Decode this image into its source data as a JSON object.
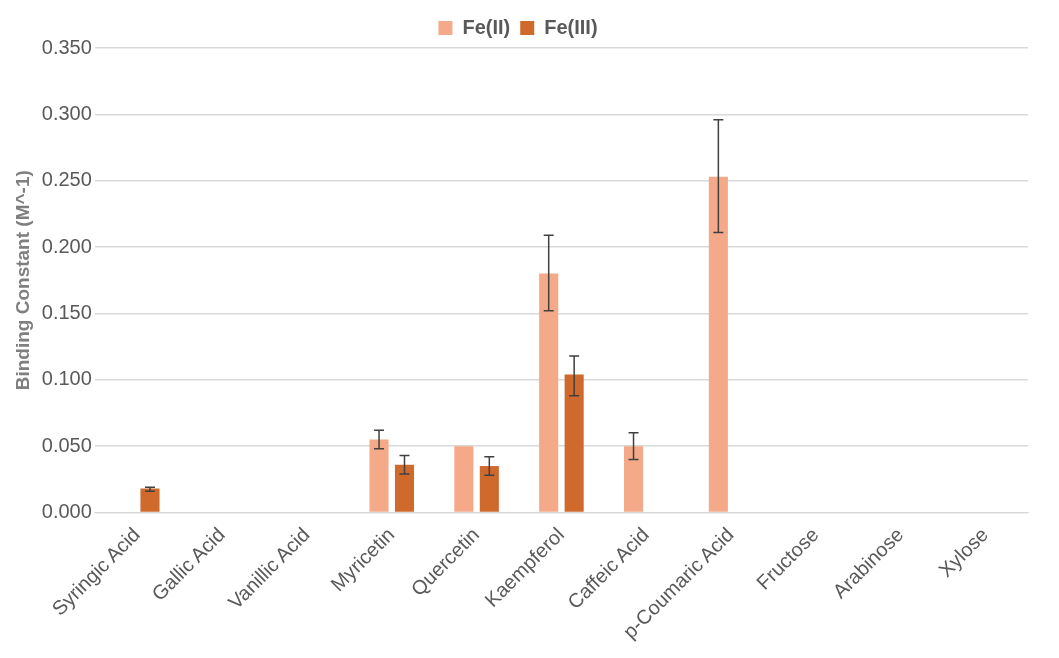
{
  "chart_data": {
    "type": "bar",
    "ylabel": "Binding Constant (M^-1)",
    "categories": [
      "Syringic Acid",
      "Gallic Acid",
      "Vanillic Acid",
      "Myricetin",
      "Quercetin",
      "Kaempferol",
      "Caffeic Acid",
      "p-Coumaric Acid",
      "Fructose",
      "Arabinose",
      "Xylose"
    ],
    "series": [
      {
        "name": "Fe(II)",
        "color": "#f4aa88",
        "values": [
          null,
          null,
          null,
          0.055,
          0.05,
          0.18,
          0.05,
          0.253,
          null,
          null,
          null
        ],
        "errors": [
          null,
          null,
          null,
          [
            0.048,
            0.062
          ],
          null,
          [
            0.152,
            0.209
          ],
          [
            0.04,
            0.06
          ],
          [
            0.211,
            0.296
          ],
          null,
          null,
          null
        ]
      },
      {
        "name": "Fe(III)",
        "color": "#d0692c",
        "values": [
          0.018,
          null,
          null,
          0.036,
          0.035,
          0.104,
          null,
          null,
          null,
          null,
          null
        ],
        "errors": [
          [
            0.016,
            0.019
          ],
          null,
          null,
          [
            0.029,
            0.043
          ],
          [
            0.028,
            0.042
          ],
          [
            0.088,
            0.118
          ],
          null,
          null,
          null,
          null,
          null
        ]
      }
    ],
    "ylim": [
      0,
      0.35
    ],
    "yticks": [
      {
        "value": 0,
        "label": "0.000"
      },
      {
        "value": 0.05,
        "label": "0.050"
      },
      {
        "value": 0.1,
        "label": "0.100"
      },
      {
        "value": 0.15,
        "label": "0.150"
      },
      {
        "value": 0.2,
        "label": "0.200"
      },
      {
        "value": 0.25,
        "label": "0.250"
      },
      {
        "value": 0.3,
        "label": "0.300"
      },
      {
        "value": 0.35,
        "label": "0.350"
      }
    ],
    "grid": "y",
    "legend": "top"
  }
}
